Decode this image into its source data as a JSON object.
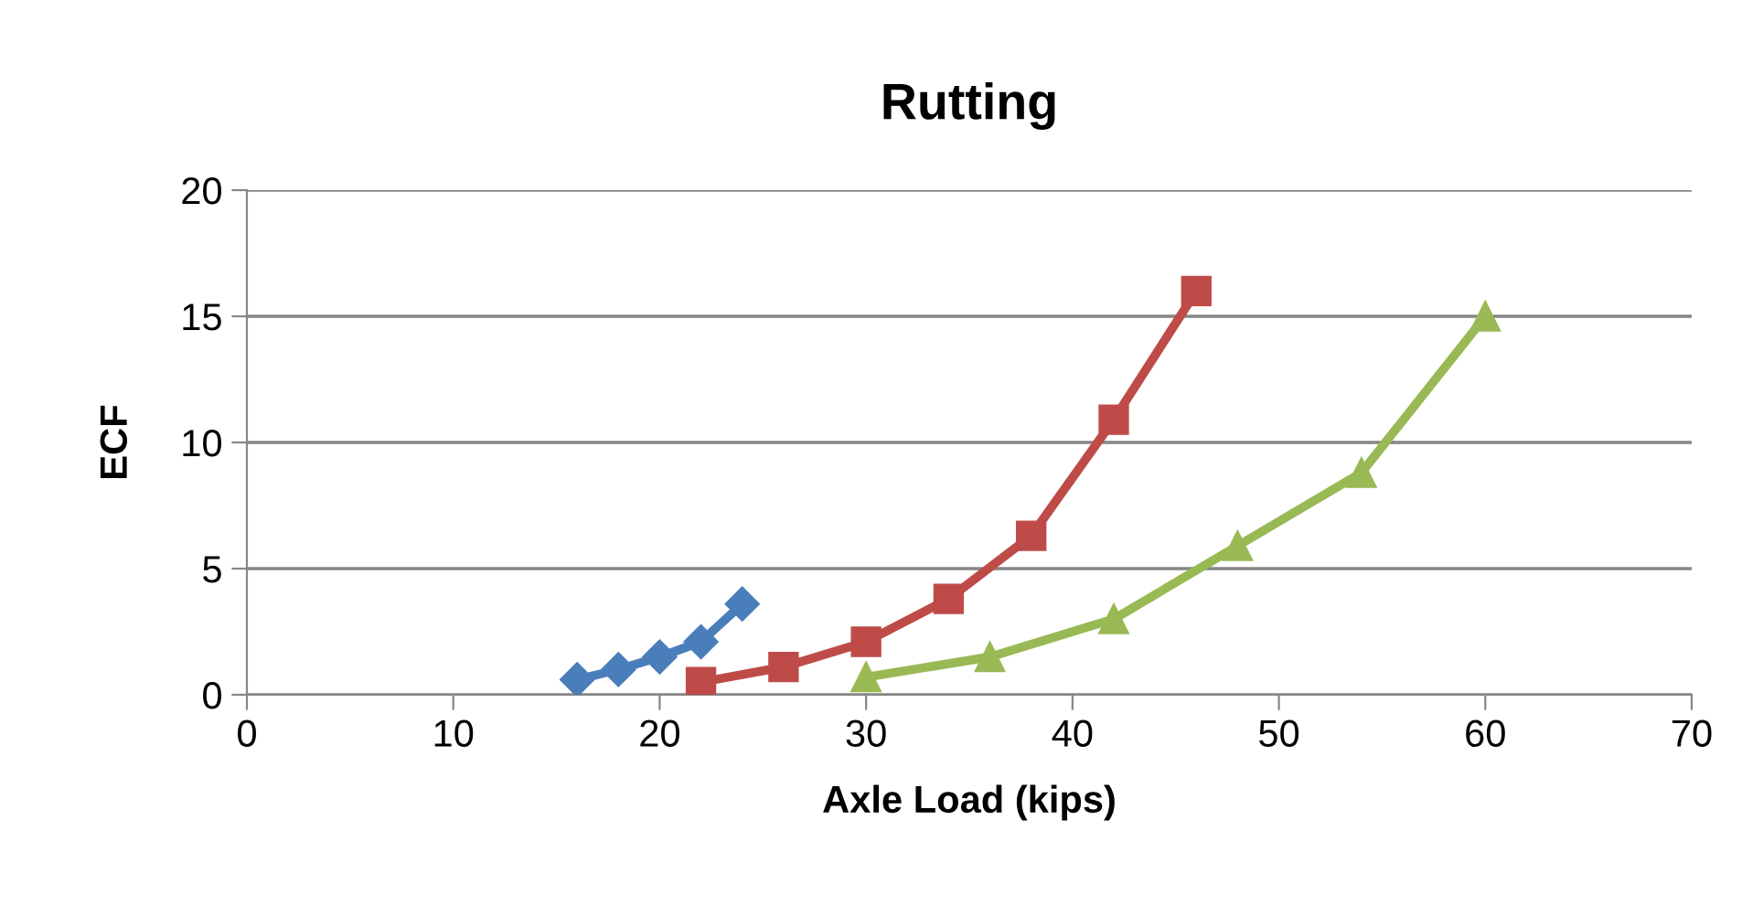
{
  "chart_data": {
    "type": "line",
    "title": "Rutting",
    "xlabel": "Axle Load (kips)",
    "ylabel": "ECF",
    "xlim": [
      0,
      70
    ],
    "xticks": [
      0,
      10,
      20,
      30,
      40,
      50,
      60,
      70
    ],
    "ylim": [
      0,
      20
    ],
    "yticks": [
      0,
      5,
      10,
      15,
      20
    ],
    "grid": "y",
    "line_style": "solid",
    "series": [
      {
        "color": "#4a7ebb",
        "marker": "diamond",
        "x": [
          16,
          18,
          20,
          22,
          24
        ],
        "values": [
          0.6,
          1.0,
          1.5,
          2.1,
          3.6
        ]
      },
      {
        "color": "#be4b48",
        "marker": "square",
        "x": [
          22,
          26,
          30,
          34,
          38,
          42,
          46
        ],
        "values": [
          0.5,
          1.1,
          2.1,
          3.8,
          6.3,
          10.9,
          16.0
        ]
      },
      {
        "color": "#98b954",
        "marker": "triangle",
        "x": [
          30,
          36,
          42,
          48,
          54,
          60
        ],
        "values": [
          0.7,
          1.5,
          3.0,
          5.9,
          8.8,
          15.0
        ]
      }
    ]
  }
}
